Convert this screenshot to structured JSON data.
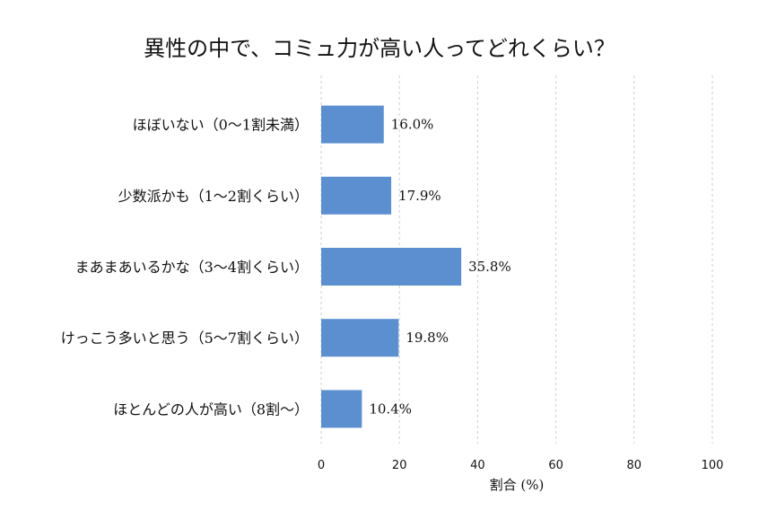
{
  "chart_data": {
    "type": "bar",
    "orientation": "horizontal",
    "title": "異性の中で、コミュ力が高い人ってどれくらい？",
    "xlabel": "割合 (%)",
    "ylabel": "",
    "xlim": [
      0,
      100
    ],
    "xticks": [
      0,
      20,
      40,
      60,
      80,
      100
    ],
    "grid": "vertical-dashed",
    "bar_color": "#5b8fd0",
    "categories": [
      "ほぼいない（0〜1割未満）",
      "少数派かも（1〜2割くらい）",
      "まあまあいるかな（3〜4割くらい）",
      "けっこう多いと思う（5〜7割くらい）",
      "ほとんどの人が高い（8割〜）"
    ],
    "values": [
      16.0,
      17.9,
      35.8,
      19.8,
      10.4
    ],
    "value_labels": [
      "16.0%",
      "17.9%",
      "35.8%",
      "19.8%",
      "10.4%"
    ]
  }
}
